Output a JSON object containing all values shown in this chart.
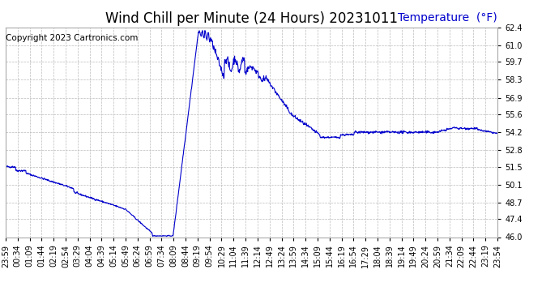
{
  "title": "Wind Chill per Minute (24 Hours) 20231011",
  "ylabel_text": "Temperature  (°F)",
  "copyright": "Copyright 2023 Cartronics.com",
  "line_color": "#0000cc",
  "ylabel_color": "#0000cc",
  "background_color": "#ffffff",
  "grid_color": "#bbbbbb",
  "ylim": [
    46.0,
    62.4
  ],
  "yticks": [
    46.0,
    47.4,
    48.7,
    50.1,
    51.5,
    52.8,
    54.2,
    55.6,
    56.9,
    58.3,
    59.7,
    61.0,
    62.4
  ],
  "x_labels": [
    "23:59",
    "00:34",
    "01:09",
    "01:44",
    "02:19",
    "02:54",
    "03:29",
    "04:04",
    "04:39",
    "05:14",
    "05:49",
    "06:24",
    "06:59",
    "07:34",
    "08:09",
    "08:44",
    "09:19",
    "09:54",
    "10:29",
    "11:04",
    "11:39",
    "12:14",
    "12:49",
    "13:24",
    "13:59",
    "14:34",
    "15:09",
    "15:44",
    "16:19",
    "16:54",
    "17:29",
    "18:04",
    "18:39",
    "19:14",
    "19:49",
    "20:24",
    "20:59",
    "21:34",
    "22:09",
    "22:44",
    "23:19",
    "23:54"
  ],
  "title_fontsize": 12,
  "ylabel_fontsize": 10,
  "tick_fontsize": 7,
  "copyright_fontsize": 7.5
}
